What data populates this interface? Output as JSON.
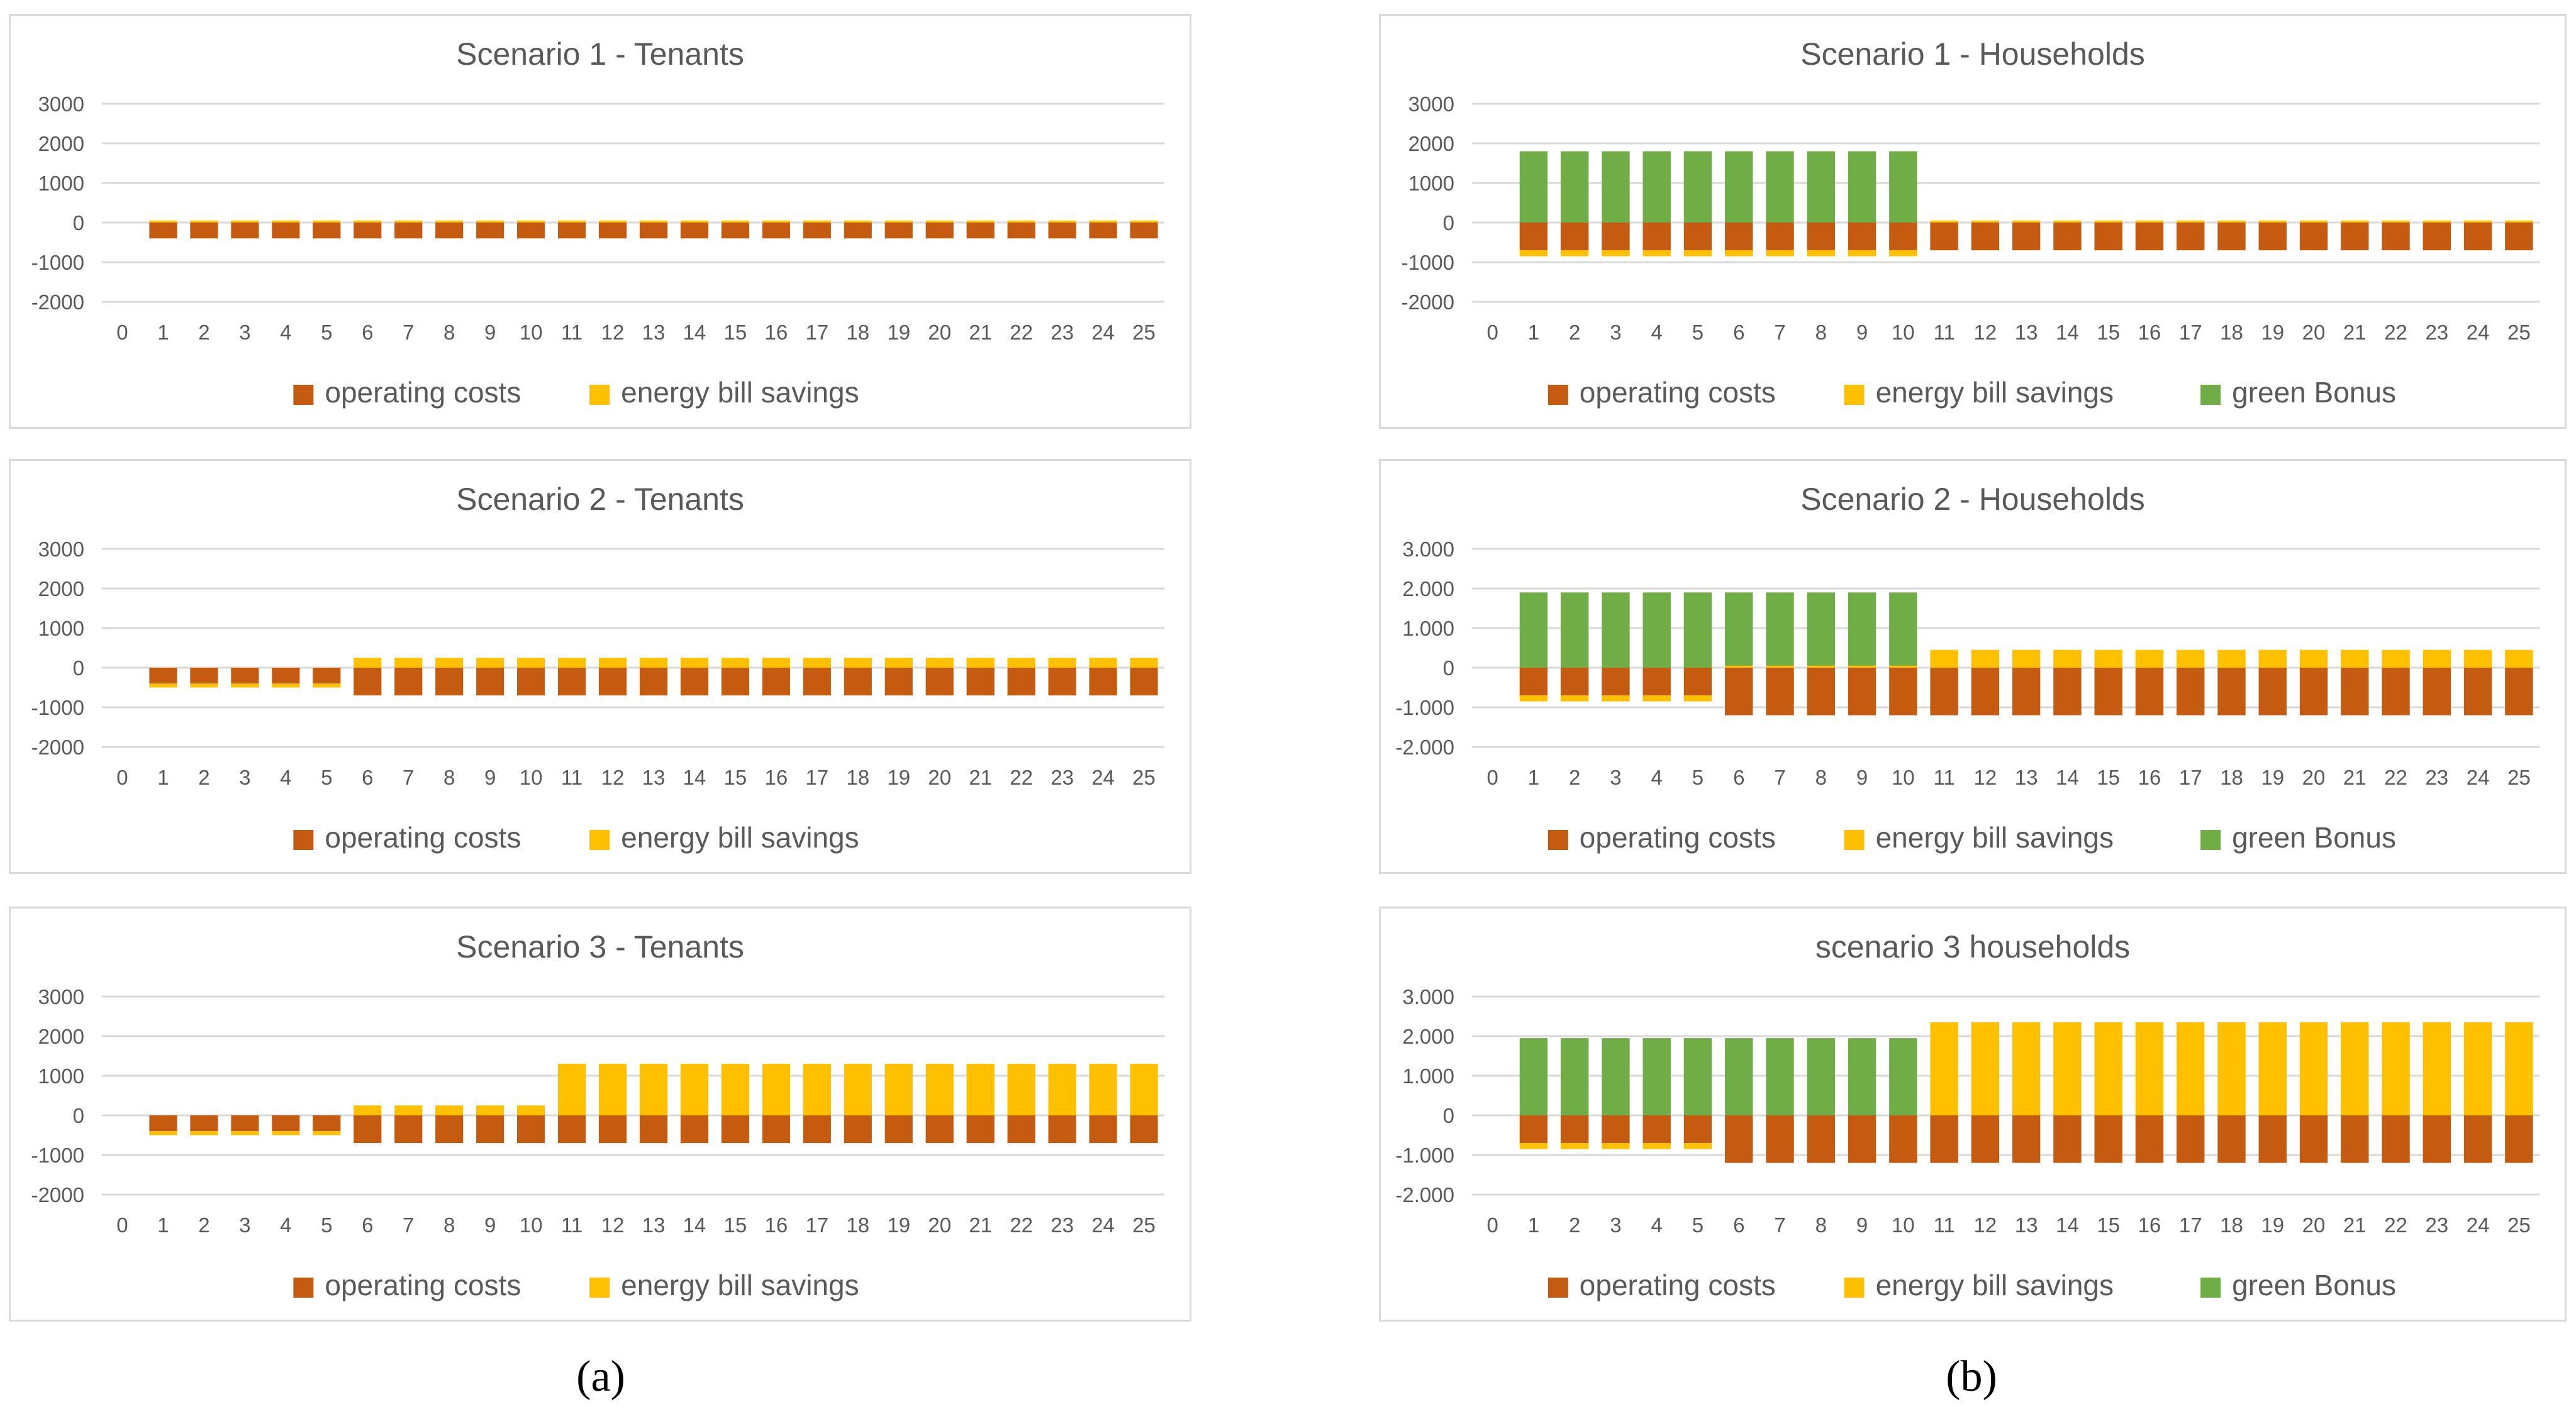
{
  "colors": {
    "operating": "#c55a11",
    "savings": "#ffc000",
    "bonus": "#70ad47",
    "text": "#595959",
    "grid": "#d9d9d9"
  },
  "captions": {
    "a": "(a)",
    "b": "(b)"
  },
  "legend": {
    "operating": "operating costs",
    "savings": "energy bill savings",
    "bonus": "green Bonus"
  },
  "chart_data": [
    {
      "id": "s1t",
      "type": "bar",
      "stacked": true,
      "title": "Scenario 1 - Tenants",
      "ylim": [
        -2000,
        3000
      ],
      "yticks": [
        "3000",
        "2000",
        "1000",
        "0",
        "-1000",
        "-2000"
      ],
      "categories": [
        "0",
        "1",
        "2",
        "3",
        "4",
        "5",
        "6",
        "7",
        "8",
        "9",
        "10",
        "11",
        "12",
        "13",
        "14",
        "15",
        "16",
        "17",
        "18",
        "19",
        "20",
        "21",
        "22",
        "23",
        "24",
        "25"
      ],
      "series": [
        {
          "key": "operating",
          "name": "operating costs",
          "values": [
            null,
            -400,
            -400,
            -400,
            -400,
            -400,
            -400,
            -400,
            -400,
            -400,
            -400,
            -400,
            -400,
            -400,
            -400,
            -400,
            -400,
            -400,
            -400,
            -400,
            -400,
            -400,
            -400,
            -400,
            -400,
            -400
          ]
        },
        {
          "key": "savings",
          "name": "energy bill savings",
          "values": [
            null,
            50,
            50,
            50,
            50,
            50,
            50,
            50,
            50,
            50,
            50,
            50,
            50,
            50,
            50,
            50,
            50,
            50,
            50,
            50,
            50,
            50,
            50,
            50,
            50,
            50
          ]
        }
      ]
    },
    {
      "id": "s1h",
      "type": "bar",
      "stacked": true,
      "title": "Scenario 1 - Households",
      "ylim": [
        -2000,
        3000
      ],
      "yticks": [
        "3000",
        "2000",
        "1000",
        "0",
        "-1000",
        "-2000"
      ],
      "categories": [
        "0",
        "1",
        "2",
        "3",
        "4",
        "5",
        "6",
        "7",
        "8",
        "9",
        "10",
        "11",
        "12",
        "13",
        "14",
        "15",
        "16",
        "17",
        "18",
        "19",
        "20",
        "21",
        "22",
        "23",
        "24",
        "25"
      ],
      "series": [
        {
          "key": "operating",
          "name": "operating costs",
          "values": [
            null,
            -700,
            -700,
            -700,
            -700,
            -700,
            -700,
            -700,
            -700,
            -700,
            -700,
            -700,
            -700,
            -700,
            -700,
            -700,
            -700,
            -700,
            -700,
            -700,
            -700,
            -700,
            -700,
            -700,
            -700,
            -700
          ]
        },
        {
          "key": "savings",
          "name": "energy bill savings",
          "values": [
            null,
            -150,
            -150,
            -150,
            -150,
            -150,
            -150,
            -150,
            -150,
            -150,
            -150,
            50,
            50,
            50,
            50,
            50,
            50,
            50,
            50,
            50,
            50,
            50,
            50,
            50,
            50,
            50
          ]
        },
        {
          "key": "bonus",
          "name": "green Bonus",
          "values": [
            null,
            1800,
            1800,
            1800,
            1800,
            1800,
            1800,
            1800,
            1800,
            1800,
            1800,
            0,
            0,
            0,
            0,
            0,
            0,
            0,
            0,
            0,
            0,
            0,
            0,
            0,
            0,
            0
          ]
        }
      ]
    },
    {
      "id": "s2t",
      "type": "bar",
      "stacked": true,
      "title": "Scenario 2 - Tenants",
      "ylim": [
        -2000,
        3000
      ],
      "yticks": [
        "3000",
        "2000",
        "1000",
        "0",
        "-1000",
        "-2000"
      ],
      "categories": [
        "0",
        "1",
        "2",
        "3",
        "4",
        "5",
        "6",
        "7",
        "8",
        "9",
        "10",
        "11",
        "12",
        "13",
        "14",
        "15",
        "16",
        "17",
        "18",
        "19",
        "20",
        "21",
        "22",
        "23",
        "24",
        "25"
      ],
      "series": [
        {
          "key": "operating",
          "name": "operating costs",
          "values": [
            null,
            -400,
            -400,
            -400,
            -400,
            -400,
            -700,
            -700,
            -700,
            -700,
            -700,
            -700,
            -700,
            -700,
            -700,
            -700,
            -700,
            -700,
            -700,
            -700,
            -700,
            -700,
            -700,
            -700,
            -700,
            -700
          ]
        },
        {
          "key": "savings",
          "name": "energy bill savings",
          "values": [
            null,
            -100,
            -100,
            -100,
            -100,
            -100,
            250,
            250,
            250,
            250,
            250,
            250,
            250,
            250,
            250,
            250,
            250,
            250,
            250,
            250,
            250,
            250,
            250,
            250,
            250,
            250
          ]
        }
      ]
    },
    {
      "id": "s2h",
      "type": "bar",
      "stacked": true,
      "title": "Scenario 2 - Households",
      "ylim": [
        -2000,
        3000
      ],
      "yticks": [
        "3.000",
        "2.000",
        "1.000",
        "0",
        "-1.000",
        "-2.000"
      ],
      "categories": [
        "0",
        "1",
        "2",
        "3",
        "4",
        "5",
        "6",
        "7",
        "8",
        "9",
        "10",
        "11",
        "12",
        "13",
        "14",
        "15",
        "16",
        "17",
        "18",
        "19",
        "20",
        "21",
        "22",
        "23",
        "24",
        "25"
      ],
      "series": [
        {
          "key": "operating",
          "name": "operating costs",
          "values": [
            null,
            -700,
            -700,
            -700,
            -700,
            -700,
            -1200,
            -1200,
            -1200,
            -1200,
            -1200,
            -1200,
            -1200,
            -1200,
            -1200,
            -1200,
            -1200,
            -1200,
            -1200,
            -1200,
            -1200,
            -1200,
            -1200,
            -1200,
            -1200,
            -1200
          ]
        },
        {
          "key": "savings",
          "name": "energy bill savings",
          "values": [
            null,
            -150,
            -150,
            -150,
            -150,
            -150,
            50,
            50,
            50,
            50,
            50,
            450,
            450,
            450,
            450,
            450,
            450,
            450,
            450,
            450,
            450,
            450,
            450,
            450,
            450,
            450
          ]
        },
        {
          "key": "bonus",
          "name": "green Bonus",
          "values": [
            null,
            1900,
            1900,
            1900,
            1900,
            1900,
            1850,
            1850,
            1850,
            1850,
            1850,
            0,
            0,
            0,
            0,
            0,
            0,
            0,
            0,
            0,
            0,
            0,
            0,
            0,
            0,
            0
          ]
        }
      ]
    },
    {
      "id": "s3t",
      "type": "bar",
      "stacked": true,
      "title": "Scenario 3 - Tenants",
      "ylim": [
        -2000,
        3000
      ],
      "yticks": [
        "3000",
        "2000",
        "1000",
        "0",
        "-1000",
        "-2000"
      ],
      "categories": [
        "0",
        "1",
        "2",
        "3",
        "4",
        "5",
        "6",
        "7",
        "8",
        "9",
        "10",
        "11",
        "12",
        "13",
        "14",
        "15",
        "16",
        "17",
        "18",
        "19",
        "20",
        "21",
        "22",
        "23",
        "24",
        "25"
      ],
      "series": [
        {
          "key": "operating",
          "name": "operating costs",
          "values": [
            null,
            -400,
            -400,
            -400,
            -400,
            -400,
            -700,
            -700,
            -700,
            -700,
            -700,
            -700,
            -700,
            -700,
            -700,
            -700,
            -700,
            -700,
            -700,
            -700,
            -700,
            -700,
            -700,
            -700,
            -700,
            -700
          ]
        },
        {
          "key": "savings",
          "name": "energy bill savings",
          "values": [
            null,
            -100,
            -100,
            -100,
            -100,
            -100,
            250,
            250,
            250,
            250,
            250,
            1300,
            1300,
            1300,
            1300,
            1300,
            1300,
            1300,
            1300,
            1300,
            1300,
            1300,
            1300,
            1300,
            1300,
            1300
          ]
        }
      ]
    },
    {
      "id": "s3h",
      "type": "bar",
      "stacked": true,
      "title": "scenario 3 households",
      "ylim": [
        -2000,
        3000
      ],
      "yticks": [
        "3.000",
        "2.000",
        "1.000",
        "0",
        "-1.000",
        "-2.000"
      ],
      "categories": [
        "0",
        "1",
        "2",
        "3",
        "4",
        "5",
        "6",
        "7",
        "8",
        "9",
        "10",
        "11",
        "12",
        "13",
        "14",
        "15",
        "16",
        "17",
        "18",
        "19",
        "20",
        "21",
        "22",
        "23",
        "24",
        "25"
      ],
      "series": [
        {
          "key": "operating",
          "name": "operating costs",
          "values": [
            null,
            -700,
            -700,
            -700,
            -700,
            -700,
            -1200,
            -1200,
            -1200,
            -1200,
            -1200,
            -1200,
            -1200,
            -1200,
            -1200,
            -1200,
            -1200,
            -1200,
            -1200,
            -1200,
            -1200,
            -1200,
            -1200,
            -1200,
            -1200,
            -1200
          ]
        },
        {
          "key": "savings",
          "name": "energy bill savings",
          "values": [
            null,
            -150,
            -150,
            -150,
            -150,
            -150,
            0,
            0,
            0,
            0,
            0,
            2350,
            2350,
            2350,
            2350,
            2350,
            2350,
            2350,
            2350,
            2350,
            2350,
            2350,
            2350,
            2350,
            2350,
            2350
          ]
        },
        {
          "key": "bonus",
          "name": "green Bonus",
          "values": [
            null,
            1950,
            1950,
            1950,
            1950,
            1950,
            1950,
            1950,
            1950,
            1950,
            1950,
            0,
            0,
            0,
            0,
            0,
            0,
            0,
            0,
            0,
            0,
            0,
            0,
            0,
            0,
            0
          ]
        }
      ]
    }
  ]
}
